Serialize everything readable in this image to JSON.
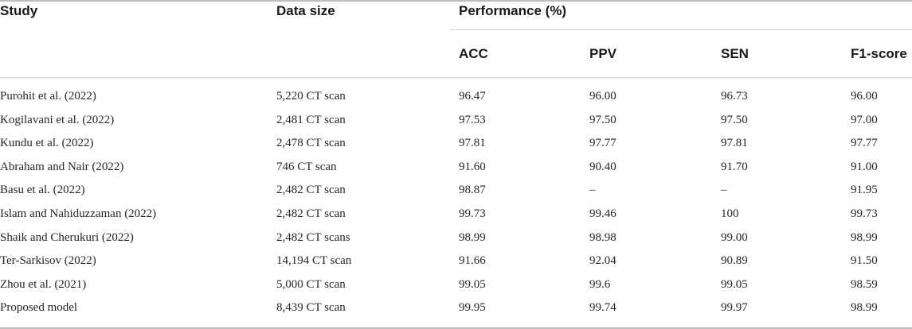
{
  "headers": {
    "study": "Study",
    "data_size": "Data size",
    "performance": "Performance (%)",
    "acc": "ACC",
    "ppv": "PPV",
    "sen": "SEN",
    "f1": "F1-score"
  },
  "rows": [
    {
      "study": "Purohit et al. (2022)",
      "data_size": "5,220 CT scan",
      "acc": "96.47",
      "ppv": "96.00",
      "sen": "96.73",
      "f1": "96.00"
    },
    {
      "study": "Kogilavani et al. (2022)",
      "data_size": "2,481 CT scan",
      "acc": "97.53",
      "ppv": "97.50",
      "sen": "97.50",
      "f1": "97.00"
    },
    {
      "study": "Kundu et al. (2022)",
      "data_size": "2,478 CT scan",
      "acc": "97.81",
      "ppv": "97.77",
      "sen": "97.81",
      "f1": "97.77"
    },
    {
      "study": "Abraham and Nair (2022)",
      "data_size": "746 CT scan",
      "acc": "91.60",
      "ppv": "90.40",
      "sen": "91.70",
      "f1": "91.00"
    },
    {
      "study": "Basu et al. (2022)",
      "data_size": "2,482 CT scan",
      "acc": "98.87",
      "ppv": "–",
      "sen": "–",
      "f1": "91.95"
    },
    {
      "study": "Islam and Nahiduzzaman (2022)",
      "data_size": "2,482 CT scan",
      "acc": "99.73",
      "ppv": "99.46",
      "sen": "100",
      "f1": "99.73"
    },
    {
      "study": "Shaik and Cherukuri (2022)",
      "data_size": "2,482 CT scans",
      "acc": "98.99",
      "ppv": "98.98",
      "sen": "99.00",
      "f1": "98.99"
    },
    {
      "study": "Ter-Sarkisov (2022)",
      "data_size": "14,194 CT scan",
      "acc": "91.66",
      "ppv": "92.04",
      "sen": "90.89",
      "f1": "91.50"
    },
    {
      "study": "Zhou et al. (2021)",
      "data_size": "5,000 CT scan",
      "acc": "99.05",
      "ppv": "99.6",
      "sen": "99.05",
      "f1": "98.59"
    },
    {
      "study": "Proposed model",
      "data_size": "8,439 CT scan",
      "acc": "99.95",
      "ppv": "99.74",
      "sen": "99.97",
      "f1": "98.99"
    }
  ]
}
